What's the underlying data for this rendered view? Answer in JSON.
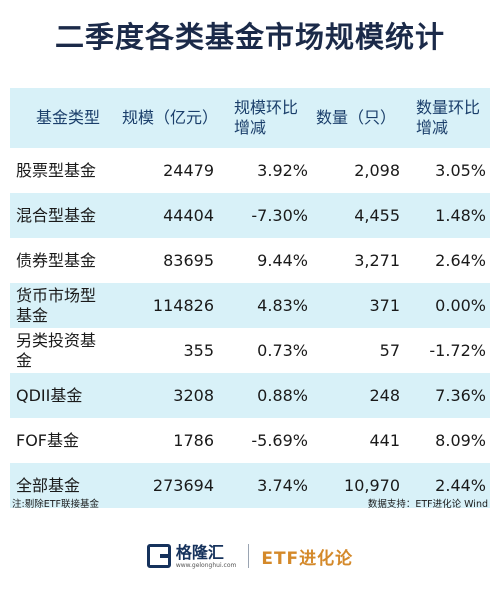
{
  "title": "二季度各类基金市场规模统计",
  "table": {
    "headers": [
      "基金类型",
      "规模（亿元）",
      "规模环比\n增减",
      "数量（只）",
      "数量环比\n增减"
    ],
    "rows": [
      [
        "股票型基金",
        "24479",
        "3.92%",
        "2,098",
        "3.05%"
      ],
      [
        "混合型基金",
        "44404",
        "-7.30%",
        "4,455",
        "1.48%"
      ],
      [
        "债券型基金",
        "83695",
        "9.44%",
        "3,271",
        "2.64%"
      ],
      [
        "货币市场型\n基金",
        "114826",
        "4.83%",
        "371",
        "0.00%"
      ],
      [
        "另类投资基\n金",
        "355",
        "0.73%",
        "57",
        "-1.72%"
      ],
      [
        "QDII基金",
        "3208",
        "0.88%",
        "248",
        "7.36%"
      ],
      [
        "FOF基金",
        "1786",
        "-5.69%",
        "441",
        "8.09%"
      ],
      [
        "全部基金",
        "273694",
        "3.74%",
        "10,970",
        "2.44%"
      ]
    ]
  },
  "footnote_left": "注:剔除ETF联接基金",
  "footnote_right": "数据支持：ETF进化论 Wind",
  "brand": {
    "logo_name": "格隆汇",
    "logo_url": "www.gelonghui.com",
    "right_name": "ETF进化论"
  },
  "colors": {
    "title": "#1b2a49",
    "header_text": "#1b3f6b",
    "row_shade": "#d8f1f8",
    "brand_dark": "#16325c",
    "brand_accent": "#d4892a"
  }
}
